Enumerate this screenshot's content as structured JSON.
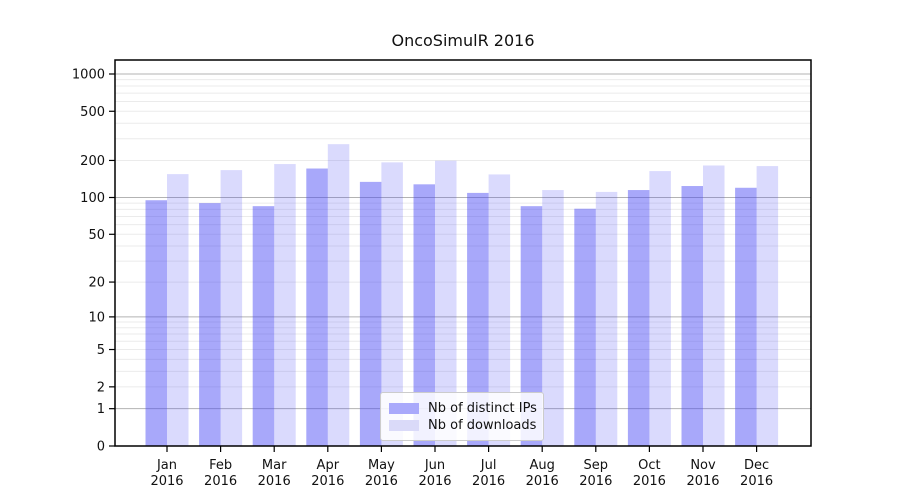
{
  "chart_data": {
    "type": "bar",
    "title": "OncoSimulR 2016",
    "categories": [
      "Jan",
      "Feb",
      "Mar",
      "Apr",
      "May",
      "Jun",
      "Jul",
      "Aug",
      "Sep",
      "Oct",
      "Nov",
      "Dec"
    ],
    "x_tick_second_line": "2016",
    "series": [
      {
        "name": "Nb of distinct IPs",
        "values": [
          95,
          90,
          85,
          172,
          134,
          128,
          109,
          85,
          81,
          115,
          124,
          120
        ],
        "color_rgba": "rgba(70,70,245,0.47)",
        "color_on_white": "#a9a9fb"
      },
      {
        "name": "Nb of downloads",
        "values": [
          155,
          167,
          187,
          271,
          193,
          199,
          154,
          115,
          111,
          164,
          182,
          180
        ],
        "color_rgba": "rgba(70,70,245,0.20)",
        "color_on_white": "#dadaf9"
      }
    ],
    "y_axis": {
      "scale": "log10(value+1)",
      "ticks": [
        0,
        1,
        2,
        5,
        10,
        20,
        50,
        100,
        200,
        500,
        1000
      ],
      "range": [
        0,
        1000
      ]
    },
    "grid": {
      "major_lines": [
        1,
        10,
        100,
        1000
      ],
      "major_color": "#b3b3b3",
      "minor_color": "#ebebeb"
    },
    "legend": {
      "position": "inside-bottom-center"
    },
    "colors": {
      "frame": "#000000",
      "tick_text": "#111111",
      "background": "#ffffff"
    }
  }
}
